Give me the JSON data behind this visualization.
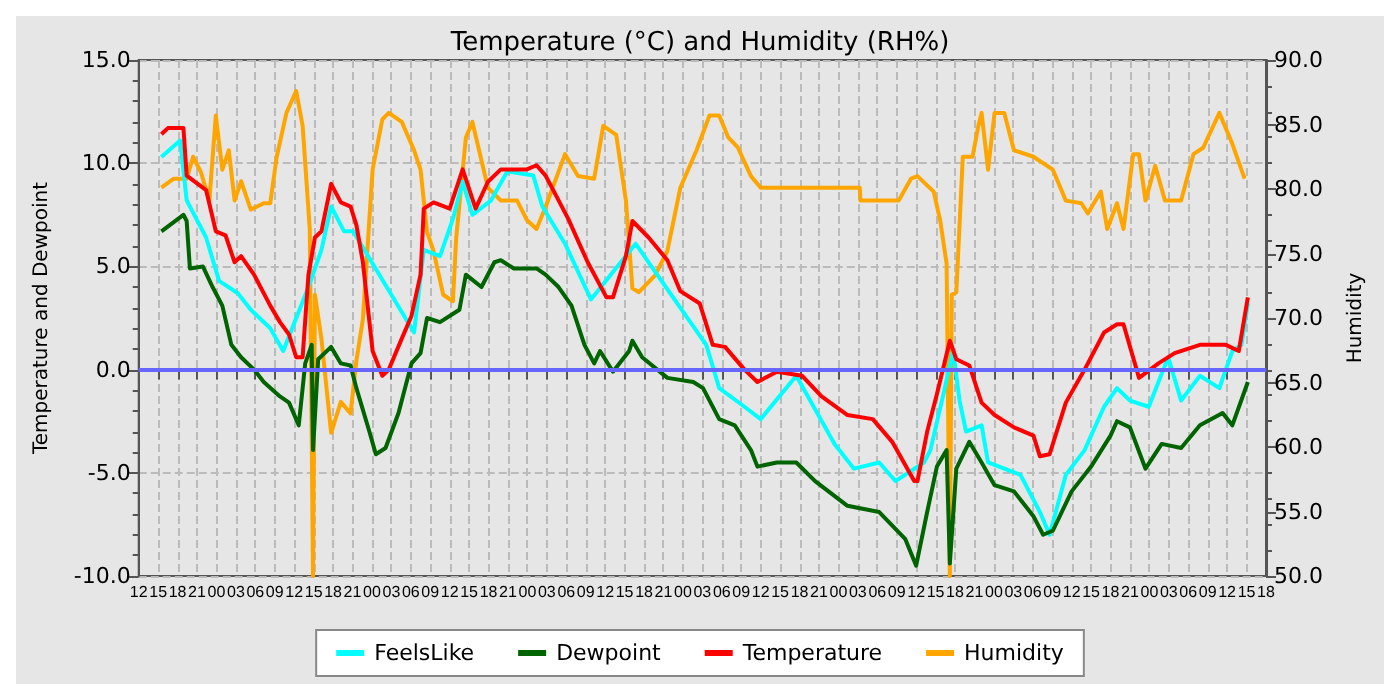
{
  "chart_data": {
    "type": "line",
    "title": "Temperature (°C) and Humidity (RH%)",
    "ylabel": "Temperature and Dewpoint",
    "y2label": "Humidity",
    "xlim": [
      12,
      186
    ],
    "xticks": [
      {
        "value": 12,
        "label": "12"
      },
      {
        "value": 15,
        "label": "15"
      },
      {
        "value": 18,
        "label": "18"
      },
      {
        "value": 21,
        "label": "21"
      },
      {
        "value": 24,
        "label": "00"
      },
      {
        "value": 27,
        "label": "03"
      },
      {
        "value": 30,
        "label": "06"
      },
      {
        "value": 33,
        "label": "09"
      },
      {
        "value": 36,
        "label": "12"
      },
      {
        "value": 39,
        "label": "15"
      },
      {
        "value": 42,
        "label": "18"
      },
      {
        "value": 45,
        "label": "21"
      },
      {
        "value": 48,
        "label": "00"
      },
      {
        "value": 51,
        "label": "03"
      },
      {
        "value": 54,
        "label": "06"
      },
      {
        "value": 57,
        "label": "09"
      },
      {
        "value": 60,
        "label": "12"
      },
      {
        "value": 63,
        "label": "15"
      },
      {
        "value": 66,
        "label": "18"
      },
      {
        "value": 69,
        "label": "21"
      },
      {
        "value": 72,
        "label": "00"
      },
      {
        "value": 75,
        "label": "03"
      },
      {
        "value": 78,
        "label": "06"
      },
      {
        "value": 81,
        "label": "09"
      },
      {
        "value": 84,
        "label": "12"
      },
      {
        "value": 87,
        "label": "15"
      },
      {
        "value": 90,
        "label": "18"
      },
      {
        "value": 93,
        "label": "21"
      },
      {
        "value": 96,
        "label": "00"
      },
      {
        "value": 99,
        "label": "03"
      },
      {
        "value": 102,
        "label": "06"
      },
      {
        "value": 105,
        "label": "09"
      },
      {
        "value": 108,
        "label": "12"
      },
      {
        "value": 111,
        "label": "15"
      },
      {
        "value": 114,
        "label": "18"
      },
      {
        "value": 117,
        "label": "21"
      },
      {
        "value": 120,
        "label": "00"
      },
      {
        "value": 123,
        "label": "03"
      },
      {
        "value": 126,
        "label": "06"
      },
      {
        "value": 129,
        "label": "09"
      },
      {
        "value": 132,
        "label": "12"
      },
      {
        "value": 135,
        "label": "15"
      },
      {
        "value": 138,
        "label": "18"
      },
      {
        "value": 141,
        "label": "21"
      },
      {
        "value": 144,
        "label": "00"
      },
      {
        "value": 147,
        "label": "03"
      },
      {
        "value": 150,
        "label": "06"
      },
      {
        "value": 153,
        "label": "09"
      },
      {
        "value": 156,
        "label": "12"
      },
      {
        "value": 159,
        "label": "15"
      },
      {
        "value": 162,
        "label": "18"
      },
      {
        "value": 165,
        "label": "21"
      },
      {
        "value": 168,
        "label": "00"
      },
      {
        "value": 171,
        "label": "03"
      },
      {
        "value": 174,
        "label": "06"
      },
      {
        "value": 177,
        "label": "09"
      },
      {
        "value": 180,
        "label": "12"
      },
      {
        "value": 183,
        "label": "15"
      },
      {
        "value": 186,
        "label": "18"
      }
    ],
    "ylim": [
      -10,
      15
    ],
    "yticks": [
      {
        "value": -10,
        "label": "-10.0"
      },
      {
        "value": -5,
        "label": "-5.0"
      },
      {
        "value": 0,
        "label": "0.0"
      },
      {
        "value": 5,
        "label": "5.0"
      },
      {
        "value": 10,
        "label": "10.0"
      },
      {
        "value": 15,
        "label": "15.0"
      }
    ],
    "y2lim": [
      50,
      90
    ],
    "y2ticks": [
      {
        "value": 50,
        "label": "50.0"
      },
      {
        "value": 55,
        "label": "55.0"
      },
      {
        "value": 60,
        "label": "60.0"
      },
      {
        "value": 65,
        "label": "65.0"
      },
      {
        "value": 70,
        "label": "70.0"
      },
      {
        "value": 75,
        "label": "75.0"
      },
      {
        "value": 80,
        "label": "80.0"
      },
      {
        "value": 85,
        "label": "85.0"
      },
      {
        "value": 90,
        "label": "90.0"
      }
    ],
    "grid": true,
    "legend": "bottom",
    "marker": "none",
    "line_style": "solid",
    "ref_lines": [
      {
        "axis": "y",
        "value": 0,
        "color": "#6666ff"
      }
    ],
    "series": [
      {
        "name": "FeelsLike",
        "color": "#00ffff",
        "x": [
          15.5,
          18.4,
          19.4,
          22.4,
          24.4,
          27.3,
          29.3,
          32.3,
          34.3,
          38.2,
          40.2,
          41.7,
          43.7,
          45.1,
          54.5,
          56,
          58.5,
          60.5,
          62,
          63.5,
          66.4,
          66.9,
          68.9,
          72.9,
          74.3,
          77.8,
          81.8,
          88.7,
          90.7,
          99.6,
          101.6,
          105.5,
          108,
          113.5,
          119.4,
          122.4,
          126.3,
          128.8,
          133.2,
          134.2,
          136.2,
          137.7,
          138.7,
          139.7,
          142.1,
          143.1,
          148.1,
          151.1,
          152.6,
          155.1,
          158,
          161,
          163,
          165,
          167.9,
          170.9,
          172.9,
          175.8,
          178.8,
          180.8,
          182.2,
          183.2
        ],
        "values": [
          10.3,
          11.1,
          8.2,
          6.4,
          4.3,
          3.7,
          2.9,
          2.0,
          0.9,
          4.0,
          5.8,
          7.9,
          6.7,
          6.7,
          1.8,
          5.8,
          5.5,
          7.3,
          9.1,
          7.5,
          8.2,
          8.5,
          9.6,
          9.4,
          7.9,
          6.1,
          3.4,
          6.1,
          5.2,
          1.2,
          -0.9,
          -1.8,
          -2.4,
          -0.3,
          -3.6,
          -4.8,
          -4.5,
          -5.4,
          -4.5,
          -3.9,
          -1.2,
          0.9,
          -1.5,
          -3.0,
          -2.7,
          -4.5,
          -5.1,
          -6.9,
          -8.0,
          -5.1,
          -3.9,
          -1.8,
          -0.9,
          -1.5,
          -1.8,
          0.6,
          -1.5,
          -0.3,
          -0.9,
          0.9,
          1.2,
          3.2
        ]
      },
      {
        "name": "Dewpoint",
        "color": "#006400",
        "x": [
          15.5,
          18.9,
          19.4,
          19.9,
          21.9,
          23.4,
          24.9,
          26.3,
          27.8,
          29.8,
          31.3,
          33.8,
          35.2,
          36.7,
          37.7,
          38.7,
          38.9,
          39.7,
          41.7,
          43.2,
          44.7,
          45.6,
          47.6,
          48.6,
          50.1,
          52.1,
          54.1,
          55.5,
          56.5,
          58.5,
          61.5,
          62.5,
          64.9,
          66.9,
          67.9,
          69.9,
          73.4,
          74.8,
          76.8,
          78.8,
          80.8,
          82.3,
          83.2,
          85.2,
          87.7,
          88.2,
          89.7,
          93.6,
          97.6,
          99.1,
          101.6,
          104,
          106.5,
          107.5,
          110.5,
          113.5,
          116.4,
          121.4,
          126.3,
          130.3,
          132,
          133.7,
          135.2,
          136.7,
          137.2,
          138.2,
          140.2,
          142.1,
          144.1,
          147.1,
          150.1,
          151.6,
          153.1,
          156,
          159,
          162,
          163,
          165,
          167.4,
          169.9,
          172.9,
          175.8,
          179.3,
          180.8,
          183.2
        ],
        "values": [
          6.7,
          7.5,
          7.2,
          4.9,
          5.0,
          4.0,
          3.1,
          1.2,
          0.6,
          0,
          -0.6,
          -1.3,
          -1.6,
          -2.7,
          0.3,
          1.2,
          -3.9,
          0.5,
          1.1,
          0.3,
          0.2,
          -0.9,
          -3.0,
          -4.1,
          -3.8,
          -2.1,
          0.3,
          0.8,
          2.5,
          2.3,
          2.9,
          4.6,
          4.0,
          5.2,
          5.3,
          4.9,
          4.9,
          4.6,
          4.0,
          3.1,
          1.2,
          0.3,
          0.9,
          -0.1,
          0.9,
          1.4,
          0.6,
          -0.4,
          -0.6,
          -0.9,
          -2.4,
          -2.7,
          -3.9,
          -4.7,
          -4.5,
          -4.5,
          -5.4,
          -6.6,
          -6.9,
          -8.2,
          -9.5,
          -6.9,
          -4.7,
          -3.9,
          -9.4,
          -4.8,
          -3.5,
          -4.5,
          -5.6,
          -5.9,
          -7.1,
          -8.0,
          -7.8,
          -5.9,
          -4.7,
          -3.2,
          -2.5,
          -2.8,
          -4.8,
          -3.6,
          -3.8,
          -2.7,
          -2.1,
          -2.7,
          -0.6
        ]
      },
      {
        "name": "Temperature",
        "color": "#ff0000",
        "x": [
          15.5,
          16.5,
          18.9,
          19.4,
          22.4,
          23.9,
          25.4,
          26.8,
          27.8,
          29.8,
          32.3,
          33.8,
          35.2,
          36.3,
          37.3,
          38.2,
          39.2,
          40.2,
          41.7,
          43.2,
          44.7,
          45.6,
          46.6,
          48.1,
          49.6,
          50.6,
          52.6,
          54.1,
          55.5,
          56,
          57.5,
          60,
          62,
          64,
          65.9,
          67.9,
          71.9,
          73.4,
          74.8,
          76.3,
          78.3,
          81.3,
          84.2,
          85.2,
          87.2,
          88.2,
          90.7,
          93.6,
          95.6,
          98.6,
          100.6,
          102.5,
          105.5,
          107.5,
          110.5,
          114.4,
          117.4,
          121.4,
          125.3,
          128.3,
          131.7,
          132.2,
          133.7,
          135.2,
          137.2,
          138.2,
          140.2,
          142.1,
          144.1,
          147.1,
          150.1,
          151.1,
          152.6,
          155.1,
          158,
          161,
          163,
          164,
          166.4,
          169.4,
          171.9,
          175.8,
          179.8,
          181.8,
          183.2
        ],
        "values": [
          11.4,
          11.7,
          11.7,
          9.4,
          8.7,
          6.7,
          6.5,
          5.2,
          5.5,
          4.6,
          3.1,
          2.3,
          1.7,
          0.6,
          0.6,
          4.6,
          6.4,
          6.7,
          9.0,
          8.1,
          7.9,
          7.0,
          5.2,
          0.9,
          -0.3,
          0,
          1.5,
          2.6,
          4.6,
          7.8,
          8.1,
          7.8,
          9.7,
          7.8,
          9.1,
          9.7,
          9.7,
          9.9,
          9.4,
          8.5,
          7.3,
          5.2,
          3.5,
          3.5,
          5.5,
          7.2,
          6.4,
          5.3,
          3.8,
          3.2,
          1.2,
          1.1,
          0.0,
          -0.6,
          -0.1,
          -0.3,
          -1.3,
          -2.2,
          -2.4,
          -3.5,
          -5.4,
          -5.4,
          -3.0,
          -1.2,
          1.4,
          0.5,
          0.2,
          -1.6,
          -2.2,
          -2.8,
          -3.2,
          -4.2,
          -4.1,
          -1.6,
          0.0,
          1.8,
          2.2,
          2.2,
          -0.4,
          0.3,
          0.8,
          1.2,
          1.2,
          0.9,
          3.5
        ]
      },
      {
        "name": "Humidity",
        "color": "#ffa500",
        "axis": "y2",
        "x": [
          15.5,
          17.4,
          19.4,
          20.4,
          21.6,
          22.9,
          23.9,
          24.9,
          25.9,
          26.8,
          27.8,
          29.3,
          31.3,
          32.3,
          33.3,
          34.8,
          36.3,
          37.3,
          38.4,
          38.9,
          39.2,
          40.2,
          41.7,
          43.2,
          44.7,
          45.6,
          46.6,
          48.1,
          49.6,
          50.6,
          52.6,
          54.5,
          55.5,
          56.5,
          57.5,
          59,
          60.5,
          61,
          62.5,
          63.5,
          65.9,
          67.9,
          70.4,
          71.9,
          73.4,
          74.8,
          77.8,
          79.8,
          82.3,
          83.7,
          85.7,
          87.2,
          88.2,
          89.2,
          91.7,
          93.6,
          95.6,
          98.1,
          100.1,
          101.6,
          103,
          104.5,
          106.5,
          108,
          115.4,
          123.3,
          123.4,
          129.3,
          131.2,
          132.2,
          134.7,
          135.7,
          136.7,
          137.2,
          137.5,
          138.2,
          139.2,
          140.7,
          141.6,
          142.1,
          143.1,
          144.1,
          145.6,
          147.1,
          150.1,
          153.1,
          155.1,
          157.5,
          158.5,
          160.5,
          161.5,
          163,
          164,
          165.5,
          166.4,
          167.4,
          168.9,
          170.4,
          172.9,
          174.8,
          176.3,
          178.8,
          180.8,
          182.7
        ],
        "values": [
          80.1,
          80.8,
          80.8,
          82.5,
          81.3,
          79.1,
          85.7,
          81.5,
          83.0,
          79.1,
          80.6,
          78.4,
          78.9,
          78.9,
          82.5,
          85.9,
          87.6,
          84.9,
          76.9,
          50,
          71.8,
          68.4,
          61.1,
          63.5,
          62.6,
          66.7,
          69.9,
          81.5,
          85.4,
          85.9,
          85.2,
          83.0,
          81.5,
          76.7,
          75.2,
          71.8,
          71.3,
          76.2,
          84.0,
          85.2,
          80.1,
          79.1,
          79.1,
          77.6,
          76.9,
          78.6,
          82.7,
          81.0,
          80.8,
          84.9,
          84.2,
          79.1,
          72.3,
          72.0,
          73.3,
          75.2,
          80.1,
          83.0,
          85.7,
          85.7,
          84.0,
          83.2,
          81.0,
          80.1,
          80.1,
          80.1,
          79.1,
          79.1,
          80.8,
          81.0,
          79.8,
          77.6,
          74.2,
          50,
          71.8,
          72.0,
          82.5,
          82.5,
          84.9,
          85.9,
          81.5,
          85.9,
          85.9,
          83.0,
          82.5,
          81.5,
          79.1,
          78.9,
          78.1,
          79.8,
          76.9,
          78.9,
          76.9,
          82.7,
          82.7,
          79.1,
          81.8,
          79.1,
          79.1,
          82.7,
          83.2,
          85.9,
          83.5,
          80.8
        ]
      }
    ]
  }
}
